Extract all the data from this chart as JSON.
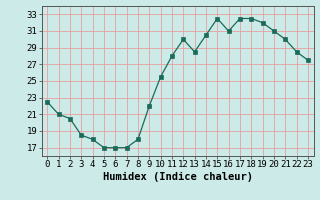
{
  "x": [
    0,
    1,
    2,
    3,
    4,
    5,
    6,
    7,
    8,
    9,
    10,
    11,
    12,
    13,
    14,
    15,
    16,
    17,
    18,
    19,
    20,
    21,
    22,
    23
  ],
  "y": [
    22.5,
    21.0,
    20.5,
    18.5,
    18.0,
    17.0,
    17.0,
    17.0,
    18.0,
    22.0,
    25.5,
    28.0,
    30.0,
    28.5,
    30.5,
    32.5,
    31.0,
    32.5,
    32.5,
    32.0,
    31.0,
    30.0,
    28.5,
    27.5
  ],
  "line_color": "#1a6b5a",
  "marker": "s",
  "marker_size": 2.2,
  "bg_color": "#cceae7",
  "grid_color": "#e8a0a0",
  "xlabel": "Humidex (Indice chaleur)",
  "xlabel_fontsize": 7.5,
  "tick_fontsize": 6.5,
  "xlim": [
    -0.5,
    23.5
  ],
  "ylim": [
    16,
    34
  ],
  "yticks": [
    17,
    19,
    21,
    23,
    25,
    27,
    29,
    31,
    33
  ],
  "xticks": [
    0,
    1,
    2,
    3,
    4,
    5,
    6,
    7,
    8,
    9,
    10,
    11,
    12,
    13,
    14,
    15,
    16,
    17,
    18,
    19,
    20,
    21,
    22,
    23
  ]
}
